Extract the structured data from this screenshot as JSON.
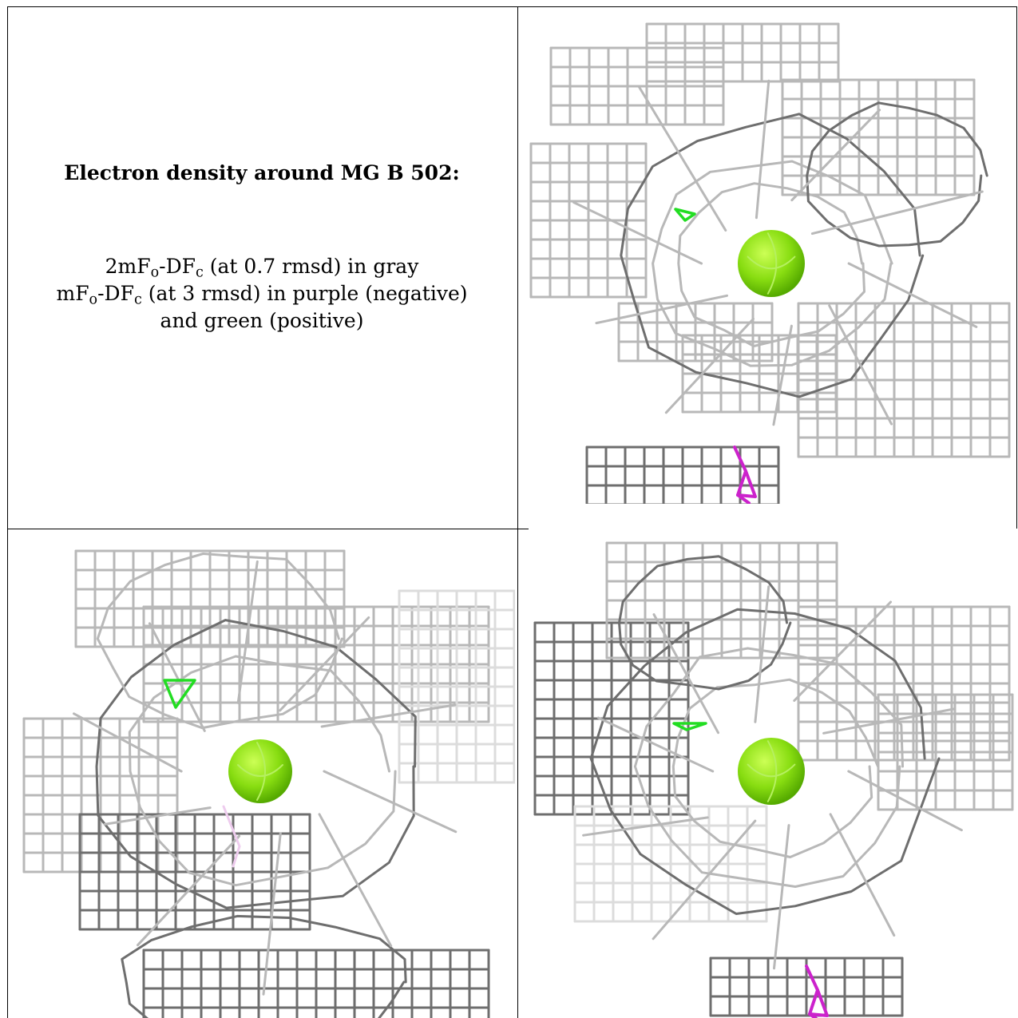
{
  "caption": {
    "title": "Electron density around MG B 502:",
    "map1": {
      "prefix": "2mF",
      "sub1": "o",
      "middle": "-DF",
      "sub2": "c",
      "suffix": " (at 0.7 rmsd) in gray"
    },
    "map2": {
      "prefix": "mF",
      "sub1": "o",
      "middle": "-DF",
      "sub2": "c",
      "suffix": " (at 3 rmsd) in purple (negative)"
    },
    "map2_cont": "and green (positive)"
  },
  "colors": {
    "mesh_gray": "#b8b8b8",
    "mesh_dark": "#6e6e6e",
    "mesh_light": "#dcdcdc",
    "positive_green": "#22dd22",
    "negative_purple": "#cc22cc",
    "ion_sphere": "#88dd11"
  },
  "panels": [
    {
      "view": "view-1",
      "ion": [
        966,
        330,
        42
      ],
      "pos_diff": [
        [
          846,
          262
        ],
        [
          870,
          268
        ],
        [
          858,
          276
        ]
      ],
      "neg_diff": true
    },
    {
      "view": "view-2",
      "ion": [
        326,
        966,
        40
      ],
      "pos_diff": [
        [
          206,
          852
        ],
        [
          244,
          852
        ],
        [
          220,
          886
        ]
      ],
      "neg_diff": false
    },
    {
      "view": "view-3",
      "ion": [
        966,
        966,
        42
      ],
      "pos_diff": [
        [
          844,
          906
        ],
        [
          884,
          906
        ],
        [
          860,
          914
        ]
      ],
      "neg_diff": true
    }
  ]
}
